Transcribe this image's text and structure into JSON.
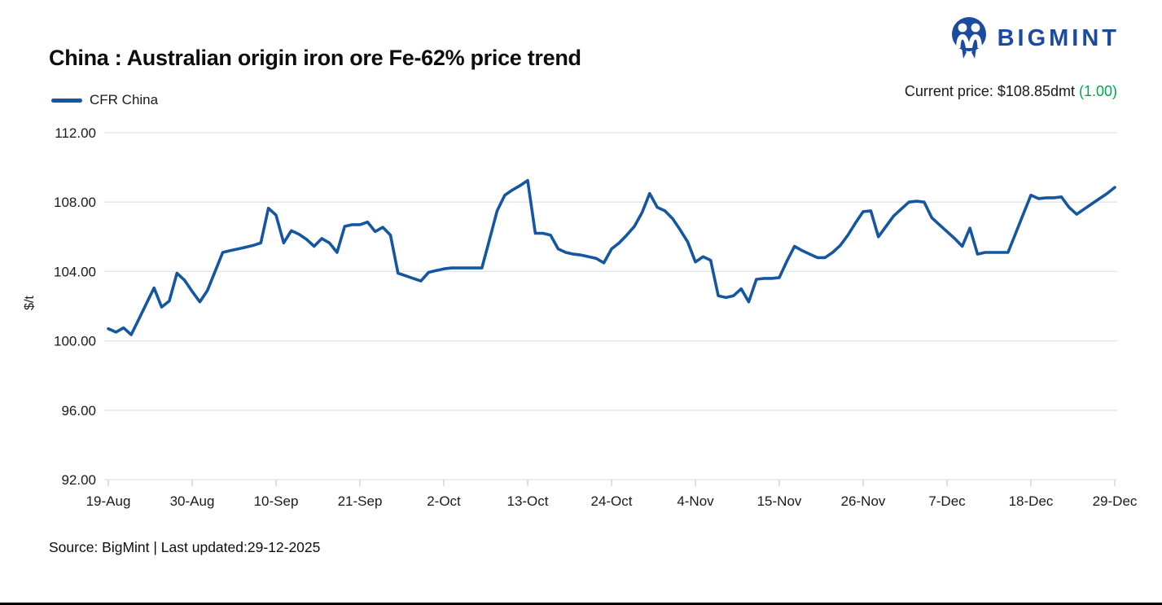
{
  "header": {
    "title": "China : Australian origin iron ore Fe-62% price trend",
    "legend": {
      "label": "CFR China",
      "color": "#1556a0"
    },
    "current_price": {
      "prefix": "Current price: $108.85dmt",
      "change": "(1.00)",
      "change_color": "#00a651"
    }
  },
  "logo": {
    "text": "BIGMINT",
    "color": "#1b4b9e",
    "icon": "two-people-circle-mark"
  },
  "footer": {
    "source": "Source: BigMint | Last updated:29-12-2025"
  },
  "chart_data": {
    "type": "line",
    "title": "China : Australian origin iron ore Fe-62% price trend",
    "ylabel": "$/t",
    "xlabel": "",
    "ylim": [
      92,
      112
    ],
    "yticks": [
      92,
      96,
      100,
      104,
      108,
      112
    ],
    "ytick_format": "0.00",
    "grid": "horizontal",
    "grid_color": "#e3e3e3",
    "tick_color": "#cfcfcf",
    "text_color": "#1a1a1a",
    "legend_position": "top-left",
    "x_tick_interval": 11,
    "xtick_labels": [
      "19-Aug",
      "30-Aug",
      "10-Sep",
      "21-Sep",
      "2-Oct",
      "13-Oct",
      "24-Oct",
      "4-Nov",
      "15-Nov",
      "26-Nov",
      "7-Dec",
      "18-Dec",
      "29-Dec"
    ],
    "dates": [
      "19-Aug",
      "20-Aug",
      "21-Aug",
      "22-Aug",
      "23-Aug",
      "24-Aug",
      "25-Aug",
      "26-Aug",
      "27-Aug",
      "28-Aug",
      "29-Aug",
      "30-Aug",
      "31-Aug",
      "1-Sep",
      "2-Sep",
      "3-Sep",
      "4-Sep",
      "5-Sep",
      "6-Sep",
      "7-Sep",
      "8-Sep",
      "9-Sep",
      "10-Sep",
      "11-Sep",
      "12-Sep",
      "13-Sep",
      "14-Sep",
      "15-Sep",
      "16-Sep",
      "17-Sep",
      "18-Sep",
      "19-Sep",
      "20-Sep",
      "21-Sep",
      "22-Sep",
      "23-Sep",
      "24-Sep",
      "25-Sep",
      "26-Sep",
      "27-Sep",
      "28-Sep",
      "29-Sep",
      "30-Sep",
      "1-Oct",
      "2-Oct",
      "3-Oct",
      "4-Oct",
      "5-Oct",
      "6-Oct",
      "7-Oct",
      "8-Oct",
      "9-Oct",
      "10-Oct",
      "11-Oct",
      "12-Oct",
      "13-Oct",
      "14-Oct",
      "15-Oct",
      "16-Oct",
      "17-Oct",
      "18-Oct",
      "19-Oct",
      "20-Oct",
      "21-Oct",
      "22-Oct",
      "23-Oct",
      "24-Oct",
      "25-Oct",
      "26-Oct",
      "27-Oct",
      "28-Oct",
      "29-Oct",
      "30-Oct",
      "31-Oct",
      "1-Nov",
      "2-Nov",
      "3-Nov",
      "4-Nov",
      "5-Nov",
      "6-Nov",
      "7-Nov",
      "8-Nov",
      "9-Nov",
      "10-Nov",
      "11-Nov",
      "12-Nov",
      "13-Nov",
      "14-Nov",
      "15-Nov",
      "16-Nov",
      "17-Nov",
      "18-Nov",
      "19-Nov",
      "20-Nov",
      "21-Nov",
      "22-Nov",
      "23-Nov",
      "24-Nov",
      "25-Nov",
      "26-Nov",
      "27-Nov",
      "28-Nov",
      "29-Nov",
      "30-Nov",
      "1-Dec",
      "2-Dec",
      "3-Dec",
      "4-Dec",
      "5-Dec",
      "6-Dec",
      "7-Dec",
      "8-Dec",
      "9-Dec",
      "10-Dec",
      "11-Dec",
      "12-Dec",
      "13-Dec",
      "14-Dec",
      "15-Dec",
      "16-Dec",
      "17-Dec",
      "18-Dec",
      "19-Dec",
      "20-Dec",
      "21-Dec",
      "22-Dec",
      "23-Dec",
      "24-Dec",
      "25-Dec",
      "26-Dec",
      "27-Dec",
      "28-Dec",
      "29-Dec"
    ],
    "series": [
      {
        "name": "CFR China",
        "color": "#1556a0",
        "values": [
          100.7,
          100.5,
          100.75,
          100.35,
          101.25,
          102.15,
          103.05,
          101.95,
          102.3,
          103.9,
          103.5,
          102.85,
          102.25,
          102.9,
          104.0,
          105.1,
          105.2,
          105.3,
          105.4,
          105.5,
          105.65,
          107.65,
          107.25,
          105.65,
          106.35,
          106.15,
          105.85,
          105.45,
          105.9,
          105.65,
          105.1,
          106.6,
          106.7,
          106.7,
          106.85,
          106.3,
          106.55,
          106.1,
          103.9,
          103.75,
          103.6,
          103.45,
          103.95,
          104.05,
          104.15,
          104.2,
          104.2,
          104.2,
          104.2,
          104.2,
          105.85,
          107.5,
          108.4,
          108.7,
          108.95,
          109.25,
          106.2,
          106.2,
          106.1,
          105.3,
          105.1,
          105.0,
          104.95,
          104.85,
          104.75,
          104.5,
          105.3,
          105.65,
          106.1,
          106.6,
          107.4,
          108.5,
          107.7,
          107.5,
          107.05,
          106.4,
          105.7,
          104.55,
          104.85,
          104.65,
          102.6,
          102.5,
          102.6,
          103.0,
          102.25,
          103.55,
          103.6,
          103.6,
          103.65,
          104.6,
          105.45,
          105.2,
          105.0,
          104.8,
          104.8,
          105.1,
          105.5,
          106.1,
          106.8,
          107.45,
          107.5,
          106.0,
          106.6,
          107.2,
          107.6,
          108.0,
          108.05,
          108.0,
          107.1,
          106.7,
          106.3,
          105.9,
          105.45,
          106.5,
          105.0,
          105.1,
          105.1,
          105.1,
          105.1,
          106.2,
          107.3,
          108.4,
          108.2,
          108.25,
          108.25,
          108.3,
          107.7,
          107.3,
          107.6,
          107.9,
          108.2,
          108.5,
          108.85
        ]
      }
    ]
  }
}
